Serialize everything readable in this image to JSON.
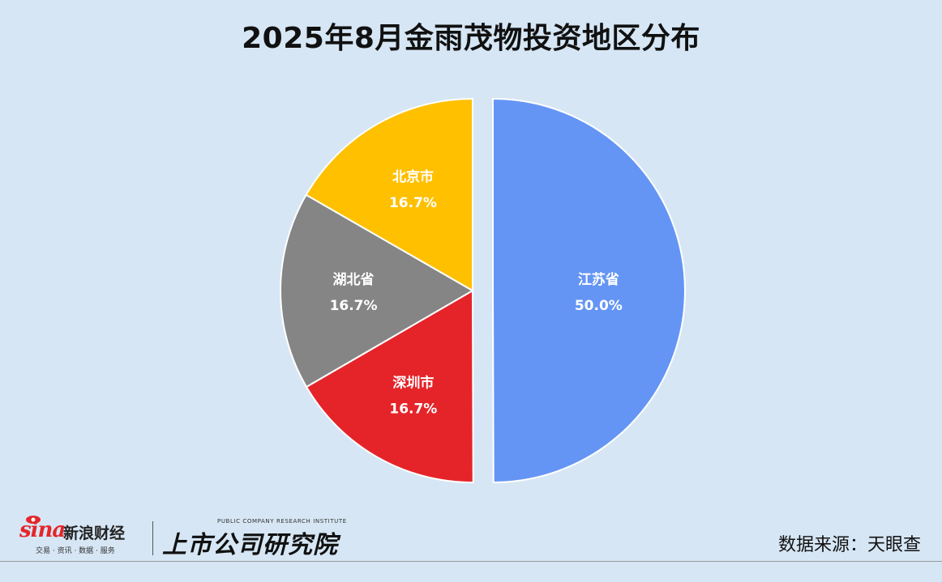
{
  "title": "2025年8月金雨茂物投资地区分布",
  "source_text": "数据来源：天眼查",
  "logos": {
    "sina_word": "sina",
    "sina_cn": "新浪财经",
    "sina_tagline": "交易 · 资讯 · 数据 · 服务",
    "institute_en": "PUBLIC COMPANY RESEARCH INSTITUTE",
    "institute_cn": "上市公司研究院"
  },
  "chart_data": {
    "type": "pie",
    "title": "2025年8月金雨茂物投资地区分布",
    "slices": [
      {
        "name": "江苏省",
        "value": 50.0,
        "label": "50.0%",
        "color": "#6495f5",
        "exploded": true
      },
      {
        "name": "深圳市",
        "value": 16.7,
        "label": "16.7%",
        "color": "#e5242a",
        "exploded": false
      },
      {
        "name": "湖北省",
        "value": 16.7,
        "label": "16.7%",
        "color": "#858585",
        "exploded": false
      },
      {
        "name": "北京市",
        "value": 16.7,
        "label": "16.7%",
        "color": "#ffc000",
        "exploded": false
      }
    ],
    "start_angle_deg": 0,
    "direction": "clockwise",
    "legend": "none"
  }
}
